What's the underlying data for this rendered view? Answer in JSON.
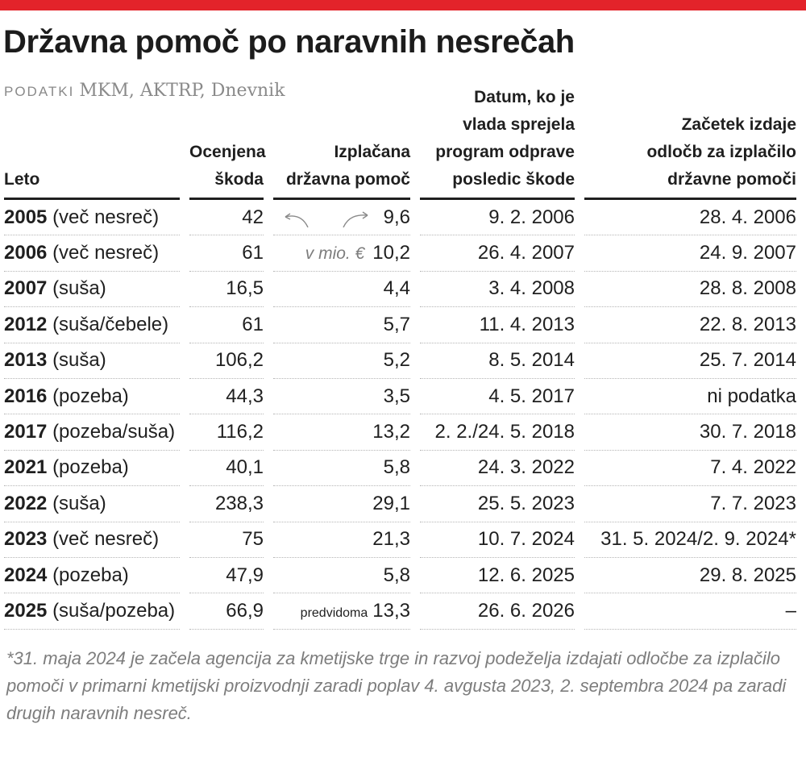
{
  "title": "Državna pomoč po naravnih nesrečah",
  "source_label": "PODATKI",
  "source_text": "MKM, AKTRP, Dnevnik",
  "accent_color": "#e3232a",
  "unit_note": "v mio. €",
  "chart_data": {
    "type": "table",
    "columns": [
      "Leto",
      "Ocenjena\nškoda",
      "Izplačana\ndržavna pomoč",
      "Datum, ko je\nvlada sprejela\nprogram odprave\nposledic škode",
      "Začetek izdaje\nodločb za izplačilo\ndržavne pomoči"
    ],
    "rows": [
      {
        "year": "2005",
        "type": "(več nesreč)",
        "damage": "42",
        "prefix": "",
        "aid": "9,6",
        "program_date": "9. 2. 2006",
        "payout_start": "28. 4. 2006"
      },
      {
        "year": "2006",
        "type": "(več nesreč)",
        "damage": "61",
        "prefix": "",
        "aid": "10,2",
        "program_date": "26. 4. 2007",
        "payout_start": "24. 9. 2007"
      },
      {
        "year": "2007",
        "type": "(suša)",
        "damage": "16,5",
        "prefix": "",
        "aid": "4,4",
        "program_date": "3. 4. 2008",
        "payout_start": "28. 8. 2008"
      },
      {
        "year": "2012",
        "type": "(suša/čebele)",
        "damage": "61",
        "prefix": "",
        "aid": "5,7",
        "program_date": "11. 4. 2013",
        "payout_start": "22. 8. 2013"
      },
      {
        "year": "2013",
        "type": "(suša)",
        "damage": "106,2",
        "prefix": "",
        "aid": "5,2",
        "program_date": "8. 5. 2014",
        "payout_start": "25. 7. 2014"
      },
      {
        "year": "2016",
        "type": "(pozeba)",
        "damage": "44,3",
        "prefix": "",
        "aid": "3,5",
        "program_date": "4. 5. 2017",
        "payout_start": "ni podatka"
      },
      {
        "year": "2017",
        "type": "(pozeba/suša)",
        "damage": "116,2",
        "prefix": "",
        "aid": "13,2",
        "program_date": "2. 2./24. 5. 2018",
        "payout_start": "30. 7. 2018"
      },
      {
        "year": "2021",
        "type": "(pozeba)",
        "damage": "40,1",
        "prefix": "",
        "aid": "5,8",
        "program_date": "24. 3. 2022",
        "payout_start": "7. 4. 2022"
      },
      {
        "year": "2022",
        "type": "(suša)",
        "damage": "238,3",
        "prefix": "",
        "aid": "29,1",
        "program_date": "25. 5. 2023",
        "payout_start": "7. 7. 2023"
      },
      {
        "year": "2023",
        "type": "(več nesreč)",
        "damage": "75",
        "prefix": "",
        "aid": "21,3",
        "program_date": "10. 7. 2024",
        "payout_start": "31. 5. 2024/2. 9. 2024*"
      },
      {
        "year": "2024",
        "type": "(pozeba)",
        "damage": "47,9",
        "prefix": "",
        "aid": "5,8",
        "program_date": "12. 6. 2025",
        "payout_start": "29. 8. 2025"
      },
      {
        "year": "2025",
        "type": "(suša/pozeba)",
        "damage": "66,9",
        "prefix": "predvidoma",
        "aid": "13,3",
        "program_date": "26. 6. 2026",
        "payout_start": "–"
      }
    ]
  },
  "footnote": "*31. maja 2024 je začela agencija za kmetijske trge in razvoj podeželja izdajati odločbe za izplačilo pomoči v primarni kmetijski proizvodnji zaradi poplav 4. avgusta 2023, 2. septembra 2024 pa zaradi drugih naravnih nesreč."
}
